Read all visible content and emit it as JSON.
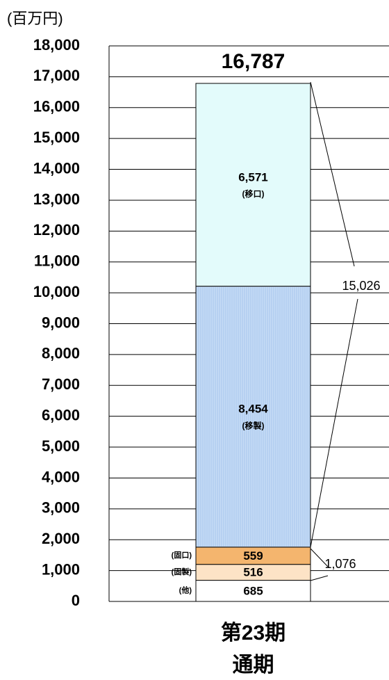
{
  "chart_data": {
    "type": "stacked-bar",
    "unit_label": "(百万円)",
    "categories": [
      "第23期\n通期"
    ],
    "series": [
      {
        "name": "(他)",
        "color": "#ffffff",
        "values": [
          685
        ],
        "value_labels": [
          "685"
        ]
      },
      {
        "name": "(固製)",
        "color": "#fde3c6",
        "values": [
          516
        ],
        "value_labels": [
          "516"
        ]
      },
      {
        "name": "(固口)",
        "color": "#f4b56e",
        "values": [
          559
        ],
        "value_labels": [
          "559"
        ]
      },
      {
        "name": "(移製)",
        "color": "#c6dcf6",
        "values": [
          8454
        ],
        "value_labels": [
          "8,454"
        ]
      },
      {
        "name": "(移口)",
        "color": "#e3fbfb",
        "values": [
          6571
        ],
        "value_labels": [
          "6,571"
        ]
      }
    ],
    "annotations": [
      {
        "text": "16,787"
      },
      {
        "text": "15,026"
      },
      {
        "text": "1,076"
      }
    ],
    "ylim": [
      0,
      18000
    ],
    "yticks": [
      0,
      {
        "value": 1000,
        "label": "1,000"
      },
      {
        "value": 2000,
        "label": "2,000"
      },
      {
        "value": 3000,
        "label": "3,000"
      },
      {
        "value": 4000,
        "label": "4,000"
      },
      {
        "value": 5000,
        "label": "5,000"
      },
      {
        "value": 6000,
        "label": "6,000"
      },
      {
        "value": 7000,
        "label": "7,000"
      },
      {
        "value": 8000,
        "label": "8,000"
      },
      {
        "value": 9000,
        "label": "9,000"
      },
      {
        "value": 10000,
        "label": "10,000"
      },
      {
        "value": 11000,
        "label": "11,000"
      },
      {
        "value": 12000,
        "label": "12,000"
      },
      {
        "value": 13000,
        "label": "13,000"
      },
      {
        "value": 14000,
        "label": "14,000"
      },
      {
        "value": 15000,
        "label": "15,000"
      },
      {
        "value": 16000,
        "label": "16,000"
      },
      {
        "value": 17000,
        "label": "17,000"
      },
      {
        "value": 18000,
        "label": "18,000"
      }
    ],
    "grid": true
  }
}
